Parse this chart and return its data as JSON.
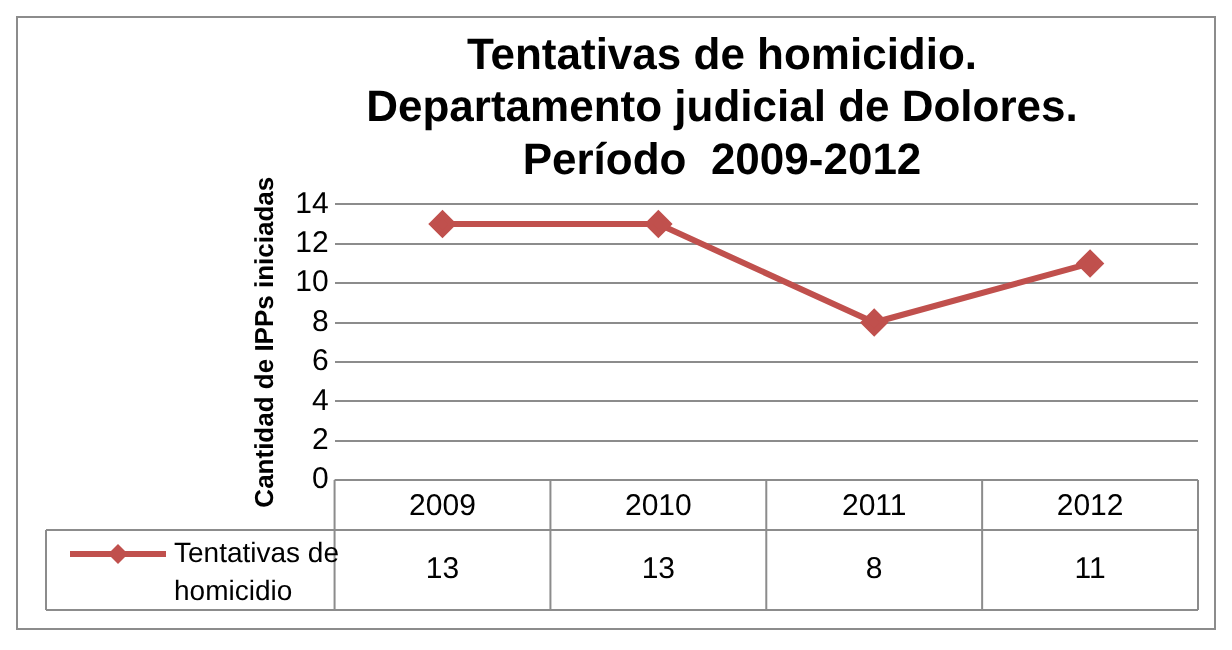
{
  "chart_data": {
    "type": "line",
    "title": "Tentativas de homicidio.\nDepartamento judicial de Dolores.\nPeríodo  2009-2012",
    "ylabel": "Cantidad de IPPs iniciadas",
    "categories": [
      "2009",
      "2010",
      "2011",
      "2012"
    ],
    "series": [
      {
        "name": "Tentativas de homicidio",
        "color": "#c0504d",
        "values": [
          13,
          13,
          8,
          11
        ]
      }
    ],
    "ylim": [
      0,
      14
    ],
    "yticks": [
      0,
      2,
      4,
      6,
      8,
      10,
      12,
      14
    ],
    "grid": "y",
    "legend": "bottom",
    "marker": "diamond",
    "line_style": "solid",
    "data_labels": true
  }
}
